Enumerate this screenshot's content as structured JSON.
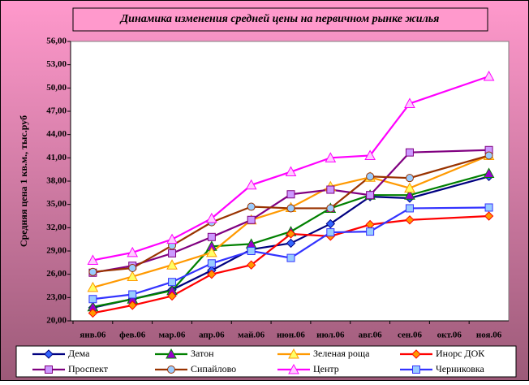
{
  "chart_data": {
    "type": "line",
    "title": "Динамика изменения средней цены на первичном рынке жилья",
    "y_label": "Средняя цена 1 кв.м., тыс.руб",
    "categories": [
      "янв.06",
      "фев.06",
      "мар.06",
      "апр.06",
      "май.06",
      "июн.06",
      "июл.06",
      "авг.06",
      "сен.06",
      "окт.06",
      "ноя.06"
    ],
    "ylim": [
      20,
      56
    ],
    "yticks": [
      {
        "value": 20,
        "label": "20,00"
      },
      {
        "value": 23,
        "label": "23,00"
      },
      {
        "value": 26,
        "label": "26,00"
      },
      {
        "value": 29,
        "label": "29,00"
      },
      {
        "value": 32,
        "label": "32,00"
      },
      {
        "value": 35,
        "label": "35,00"
      },
      {
        "value": 38,
        "label": "38,00"
      },
      {
        "value": 41,
        "label": "41,00"
      },
      {
        "value": 44,
        "label": "44,00"
      },
      {
        "value": 47,
        "label": "47,00"
      },
      {
        "value": 50,
        "label": "50,00"
      },
      {
        "value": 53,
        "label": "53,00"
      },
      {
        "value": 56,
        "label": "56,00"
      }
    ],
    "grid": false,
    "connect_gaps": true,
    "legend": "bottom",
    "series": [
      {
        "name": "Дема",
        "color": "#000080",
        "marker": "diamond",
        "marker_color": "#3366ff",
        "values": [
          21.7,
          22.8,
          24.0,
          26.5,
          29.2,
          30.0,
          32.5,
          36.0,
          35.8,
          null,
          38.6
        ]
      },
      {
        "name": "Затон",
        "color": "#008000",
        "marker": "triangle",
        "marker_color": "#9900cc",
        "values": [
          21.8,
          22.8,
          23.9,
          29.6,
          29.9,
          31.5,
          34.5,
          36.2,
          36.2,
          null,
          39.0
        ]
      },
      {
        "name": "Зеленая роща",
        "color": "#ff9900",
        "marker": "triangle",
        "marker_color": "#ffff66",
        "values": [
          24.3,
          25.7,
          27.2,
          28.8,
          33.0,
          34.6,
          37.3,
          38.5,
          37.1,
          null,
          41.3
        ]
      },
      {
        "name": "Инорс ДОК",
        "color": "#ff0000",
        "marker": "diamond",
        "marker_color": "#ff9900",
        "values": [
          21.0,
          22.0,
          23.2,
          26.0,
          27.2,
          31.2,
          30.9,
          32.4,
          33.0,
          null,
          33.5
        ]
      },
      {
        "name": "Проспект",
        "color": "#800080",
        "marker": "square",
        "marker_color": "#cc99ff",
        "values": [
          26.2,
          27.1,
          28.7,
          30.8,
          33.0,
          36.3,
          36.9,
          36.2,
          41.7,
          null,
          42.0
        ]
      },
      {
        "name": "Сипайлово",
        "color": "#993300",
        "marker": "circle",
        "marker_color": "#99ccff",
        "values": [
          26.3,
          26.8,
          29.7,
          32.7,
          34.7,
          34.5,
          34.5,
          38.6,
          38.4,
          null,
          41.3
        ]
      },
      {
        "name": "Центр",
        "color": "#ff00ff",
        "marker": "triangle",
        "marker_color": "#ffccff",
        "values": [
          27.8,
          28.8,
          30.5,
          33.2,
          37.5,
          39.2,
          41.0,
          41.3,
          48.0,
          null,
          51.5
        ]
      },
      {
        "name": "Черниковка",
        "color": "#3333ff",
        "marker": "square",
        "marker_color": "#99ccff",
        "values": [
          22.8,
          23.4,
          25.0,
          27.4,
          29.0,
          28.1,
          31.4,
          31.5,
          34.5,
          null,
          34.6
        ]
      }
    ]
  }
}
